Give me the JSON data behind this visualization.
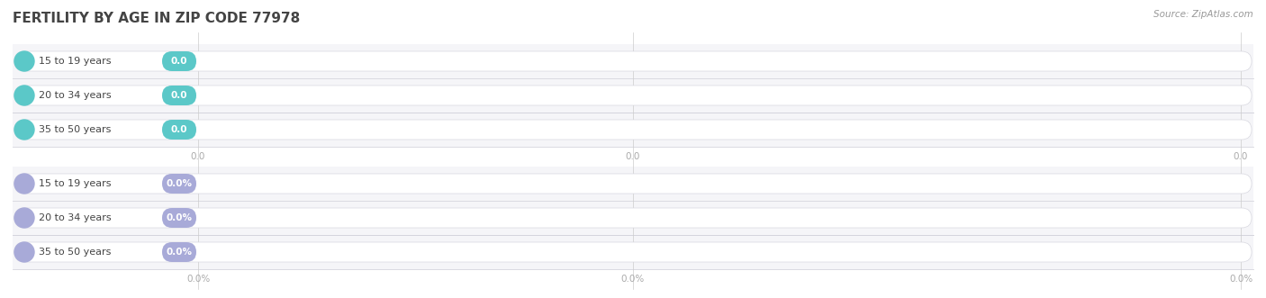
{
  "title": "FERTILITY BY AGE IN ZIP CODE 77978",
  "source": "Source: ZipAtlas.com",
  "group1_labels": [
    "15 to 19 years",
    "20 to 34 years",
    "35 to 50 years"
  ],
  "group2_labels": [
    "15 to 19 years",
    "20 to 34 years",
    "35 to 50 years"
  ],
  "group1_values": [
    0.0,
    0.0,
    0.0
  ],
  "group2_values": [
    0.0,
    0.0,
    0.0
  ],
  "group1_value_labels": [
    "0.0",
    "0.0",
    "0.0"
  ],
  "group2_value_labels": [
    "0.0%",
    "0.0%",
    "0.0%"
  ],
  "group1_bar_color": "#5bc8c8",
  "group2_bar_color": "#a8aad8",
  "bar_bg_color": "#efefef",
  "row_bg_even": "#f5f5f8",
  "row_bg_odd": "#ebebef",
  "background_color": "#ffffff",
  "title_fontsize": 11,
  "label_fontsize": 8,
  "value_fontsize": 7.5,
  "tick_fontsize": 7.5,
  "source_fontsize": 7.5,
  "separator_color": "#d5d5dd",
  "text_color": "#444444",
  "source_color": "#999999",
  "tick_color": "#aaaaaa",
  "x_tick_labels_top": [
    "0.0",
    "0.0",
    "0.0"
  ],
  "x_tick_labels_bottom": [
    "0.0%",
    "0.0%",
    "0.0%"
  ]
}
